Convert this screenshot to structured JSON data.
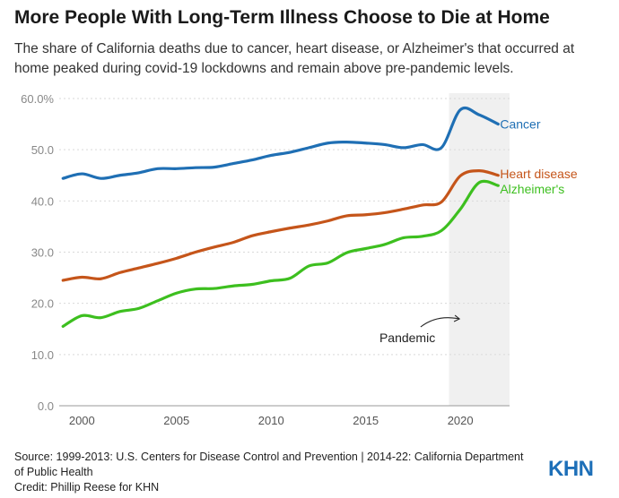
{
  "header": {
    "title": "More People With Long-Term Illness Choose to Die at Home",
    "subtitle": "The share of California deaths due to cancer, heart disease, or Alzheimer's that occurred at home peaked during covid-19 lockdowns and remain above pre-pandemic levels."
  },
  "footer": {
    "source": "Source: 1999-2013: U.S. Centers for Disease Control and Prevention | 2014-22: California Department of Public Health",
    "credit": "Credit: Phillip Reese for KHN",
    "logo": "KHN"
  },
  "colors": {
    "cancer": "#1f6fb4",
    "heart": "#c5551a",
    "alzheimers": "#3dbf1f",
    "pandemic_band": "#f0f0f0",
    "grid": "#d9d9d9"
  },
  "chart_data": {
    "type": "line",
    "title": "More People With Long-Term Illness Choose to Die at Home",
    "xlabel": "",
    "ylabel": "",
    "xlim": [
      1998.8,
      2022.6
    ],
    "ylim": [
      0,
      60
    ],
    "x_ticks": [
      2000,
      2005,
      2010,
      2015,
      2020
    ],
    "y_ticks": [
      0,
      10,
      20,
      30,
      40,
      50,
      60
    ],
    "y_tick_labels": [
      "0.0",
      "10.0",
      "20.0",
      "30.0",
      "40.0",
      "50.0",
      "60.0%"
    ],
    "grid": true,
    "shaded_region": {
      "label": "Pandemic",
      "x_start": 2019.4,
      "x_end": 2022.6
    },
    "x": [
      1999,
      2000,
      2001,
      2002,
      2003,
      2004,
      2005,
      2006,
      2007,
      2008,
      2009,
      2010,
      2011,
      2012,
      2013,
      2014,
      2015,
      2016,
      2017,
      2018,
      2019,
      2020,
      2021,
      2022
    ],
    "series": [
      {
        "name": "Cancer",
        "color_key": "cancer",
        "values": [
          44.4,
          45.3,
          44.4,
          45.0,
          45.5,
          46.3,
          46.3,
          46.5,
          46.6,
          47.3,
          48.0,
          48.9,
          49.5,
          50.4,
          51.3,
          51.5,
          51.3,
          51.0,
          50.4,
          51.0,
          50.4,
          57.8,
          56.8,
          55.0
        ]
      },
      {
        "name": "Heart disease",
        "color_key": "heart",
        "values": [
          24.5,
          25.1,
          24.8,
          26.0,
          26.9,
          27.8,
          28.8,
          30.0,
          31.0,
          31.9,
          33.2,
          34.0,
          34.7,
          35.3,
          36.1,
          37.1,
          37.3,
          37.7,
          38.4,
          39.2,
          39.8,
          44.9,
          45.9,
          45.0
        ]
      },
      {
        "name": "Alzheimer's",
        "color_key": "alzheimers",
        "values": [
          15.5,
          17.6,
          17.2,
          18.4,
          19.0,
          20.5,
          22.0,
          22.8,
          22.9,
          23.4,
          23.7,
          24.4,
          24.9,
          27.3,
          27.9,
          29.9,
          30.7,
          31.5,
          32.8,
          33.1,
          34.2,
          38.4,
          43.6,
          43.0
        ]
      }
    ]
  }
}
